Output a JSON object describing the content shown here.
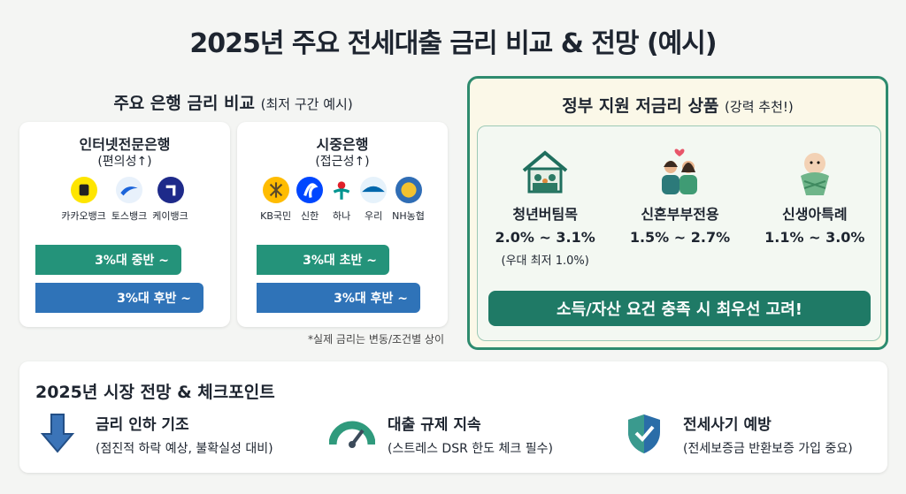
{
  "title": "2025년 주요 전세대출 금리 비교 & 전망 (예시)",
  "bank_comparison": {
    "heading": "주요 은행 금리 비교",
    "heading_note": "(최저 구간 예시)",
    "groups": [
      {
        "name": "인터넷전문은행",
        "note": "(편의성↑)",
        "banks": [
          "카카오뱅크",
          "토스뱅크",
          "케이뱅크"
        ],
        "rates": [
          "3%대 중반 ~",
          "3%대 후반 ~"
        ]
      },
      {
        "name": "시중은행",
        "note": "(접근성↑)",
        "banks": [
          "KB국민",
          "신한",
          "하나",
          "우리",
          "NH농협"
        ],
        "rates": [
          "3%대 초반 ~",
          "3%대 후반 ~"
        ]
      }
    ],
    "footnote": "*실제 금리는 변동/조건별 상이"
  },
  "government": {
    "heading": "정부 지원 저금리 상품",
    "heading_note": "(강력 추천!)",
    "products": [
      {
        "name": "청년버팀목",
        "rate": "2.0% ~ 3.1%",
        "note": "(우대 최저 1.0%)"
      },
      {
        "name": "신혼부부전용",
        "rate": "1.5% ~ 2.7%"
      },
      {
        "name": "신생아특례",
        "rate": "1.1% ~ 3.0%"
      }
    ],
    "callout": "소득/자산 요건 충족 시 최우선 고려!"
  },
  "outlook": {
    "heading": "2025년 시장 전망 & 체크포인트",
    "items": [
      {
        "title": "금리 인하 기조",
        "detail": "(점진적 하락 예상, 불확실성 대비)"
      },
      {
        "title": "대출 규제 지속",
        "detail": "(스트레스 DSR 한도 체크 필수)"
      },
      {
        "title": "전세사기 예방",
        "detail": "(전세보증금 반환보증 가입 중요)"
      }
    ]
  }
}
